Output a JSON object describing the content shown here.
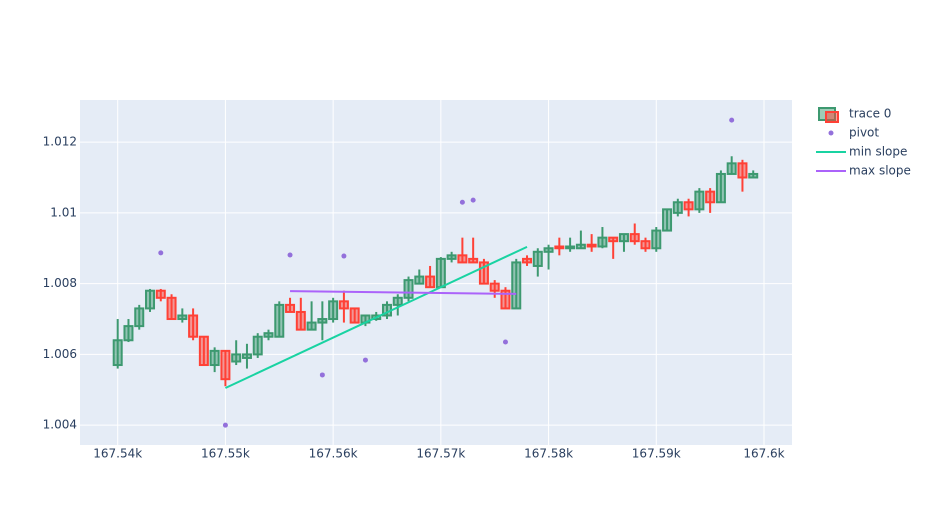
{
  "chart_data": {
    "type": "candlestick",
    "name": "trace 0",
    "increasing_color": "#3D9970",
    "decreasing_color": "#FF4136",
    "x": [
      167540,
      167541,
      167542,
      167543,
      167544,
      167545,
      167546,
      167547,
      167548,
      167549,
      167550,
      167551,
      167552,
      167553,
      167554,
      167555,
      167556,
      167557,
      167558,
      167559,
      167560,
      167561,
      167562,
      167563,
      167564,
      167565,
      167566,
      167567,
      167568,
      167569,
      167570,
      167571,
      167572,
      167573,
      167574,
      167575,
      167576,
      167577,
      167578,
      167579,
      167580,
      167581,
      167582,
      167583,
      167584,
      167585,
      167586,
      167587,
      167588,
      167589,
      167590,
      167591,
      167592,
      167593,
      167594,
      167595,
      167596,
      167597,
      167598,
      167599
    ],
    "open": [
      1.0057,
      1.0064,
      1.0068,
      1.0073,
      1.0078,
      1.0076,
      1.007,
      1.0071,
      1.0065,
      1.0057,
      1.0061,
      1.0058,
      1.0059,
      1.006,
      1.0065,
      1.0065,
      1.0074,
      1.0072,
      1.0067,
      1.0069,
      1.007,
      1.0075,
      1.0073,
      1.0069,
      1.007,
      1.0071,
      1.0074,
      1.0076,
      1.008,
      1.0082,
      1.0079,
      1.0087,
      1.0088,
      1.0087,
      1.0086,
      1.008,
      1.0078,
      1.0073,
      1.0087,
      1.0085,
      1.0089,
      1.00905,
      1.009,
      1.009,
      1.0091,
      1.00905,
      1.0093,
      1.0092,
      1.0094,
      1.0092,
      1.009,
      1.0095,
      1.01,
      1.0103,
      1.0101,
      1.0106,
      1.0103,
      1.0111,
      1.0114,
      1.011
    ],
    "high": [
      1.007,
      1.007,
      1.0074,
      1.00785,
      1.00785,
      1.0077,
      1.0073,
      1.0073,
      1.0065,
      1.0062,
      1.0061,
      1.0064,
      1.0063,
      1.0066,
      1.0067,
      1.0075,
      1.0076,
      1.0076,
      1.0075,
      1.0075,
      1.0076,
      1.0078,
      1.0073,
      1.0071,
      1.0072,
      1.0075,
      1.0077,
      1.0082,
      1.0084,
      1.0085,
      1.00875,
      1.0089,
      1.0093,
      1.0093,
      1.0087,
      1.0081,
      1.0079,
      1.0087,
      1.0088,
      1.009,
      1.0091,
      1.0093,
      1.0093,
      1.0095,
      1.0094,
      1.0096,
      1.0093,
      1.0094,
      1.0097,
      1.0093,
      1.0096,
      1.0101,
      1.0104,
      1.0104,
      1.0107,
      1.0107,
      1.0112,
      1.0116,
      1.0115,
      1.0112
    ],
    "low": [
      1.0056,
      1.00635,
      1.0067,
      1.0072,
      1.0075,
      1.007,
      1.0069,
      1.0064,
      1.0057,
      1.0055,
      1.0051,
      1.0057,
      1.0056,
      1.0059,
      1.0064,
      1.0065,
      1.0072,
      1.0067,
      1.0067,
      1.0064,
      1.0069,
      1.0069,
      1.0069,
      1.0068,
      1.00695,
      1.007,
      1.0071,
      1.0075,
      1.008,
      1.0079,
      1.0079,
      1.0086,
      1.0086,
      1.0086,
      1.008,
      1.0076,
      1.0073,
      1.0073,
      1.0085,
      1.0082,
      1.0084,
      1.0088,
      1.0089,
      1.009,
      1.0089,
      1.009,
      1.0087,
      1.0089,
      1.0091,
      1.0089,
      1.0089,
      1.0095,
      1.0099,
      1.0099,
      1.01,
      1.01,
      1.0103,
      1.0111,
      1.0106,
      1.011
    ],
    "close": [
      1.0064,
      1.0068,
      1.0073,
      1.0078,
      1.0076,
      1.007,
      1.0071,
      1.0065,
      1.0057,
      1.0061,
      1.0053,
      1.006,
      1.006,
      1.0065,
      1.0066,
      1.0074,
      1.0072,
      1.0067,
      1.0069,
      1.007,
      1.0075,
      1.0073,
      1.0069,
      1.0071,
      1.0071,
      1.0074,
      1.0076,
      1.0081,
      1.0082,
      1.0079,
      1.0087,
      1.0088,
      1.0086,
      1.0086,
      1.008,
      1.0078,
      1.0073,
      1.0086,
      1.0086,
      1.0089,
      1.009,
      1.009,
      1.00905,
      1.0091,
      1.00905,
      1.0093,
      1.0092,
      1.0094,
      1.0092,
      1.009,
      1.0095,
      1.0101,
      1.0103,
      1.0101,
      1.0106,
      1.0103,
      1.0111,
      1.0114,
      1.011,
      1.0111
    ],
    "overlays": [
      {
        "name": "pivot",
        "type": "scatter",
        "color": "#9370db",
        "x": [
          167544,
          167550,
          167556,
          167559,
          167561,
          167563,
          167572,
          167573,
          167576,
          167597
        ],
        "values": [
          1.00887,
          1.004,
          1.00881,
          1.00542,
          1.00878,
          1.00584,
          1.0103,
          1.01036,
          1.00635,
          1.01262
        ]
      },
      {
        "name": "min slope",
        "type": "line",
        "color": "#19d3a2",
        "x": [
          167550,
          167578
        ],
        "values": [
          1.00505,
          1.00904
        ]
      },
      {
        "name": "max slope",
        "type": "line",
        "color": "#ab63fa",
        "x": [
          167556,
          167577
        ],
        "values": [
          1.00779,
          1.00771
        ]
      }
    ],
    "xlim": [
      167536.5,
      167602.6
    ],
    "ylim": [
      1.00344,
      1.01319
    ],
    "xticks": [
      {
        "value": 167540,
        "label": "167.54k"
      },
      {
        "value": 167550,
        "label": "167.55k"
      },
      {
        "value": 167560,
        "label": "167.56k"
      },
      {
        "value": 167570,
        "label": "167.57k"
      },
      {
        "value": 167580,
        "label": "167.58k"
      },
      {
        "value": 167590,
        "label": "167.59k"
      },
      {
        "value": 167600,
        "label": "167.6k"
      }
    ],
    "yticks": [
      1.004,
      1.006,
      1.008,
      1.01,
      1.012
    ],
    "grid": true,
    "legend": "right"
  }
}
